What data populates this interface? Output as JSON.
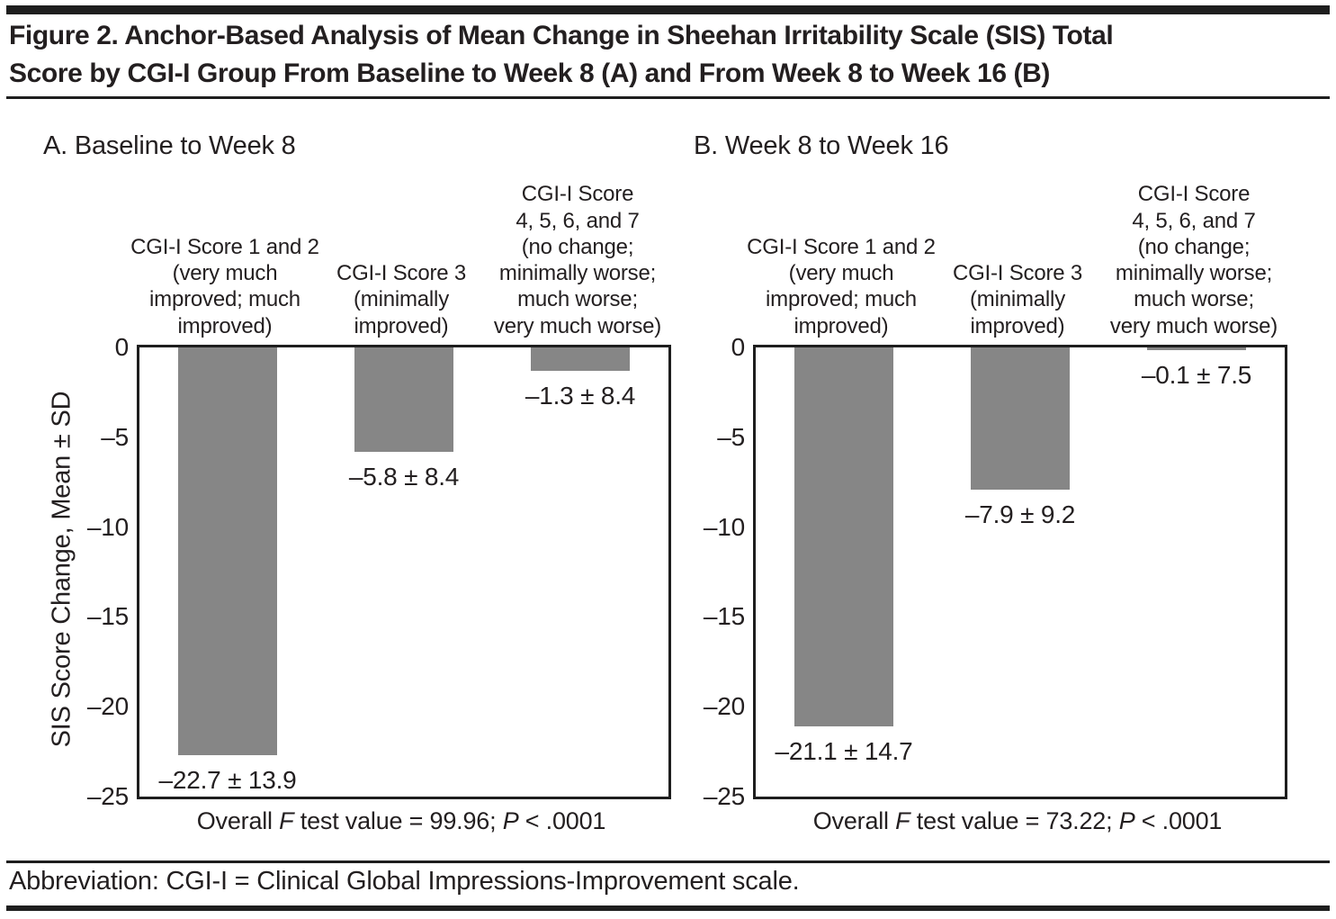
{
  "page": {
    "title": "Figure 2. Anchor-Based Analysis of Mean Change in Sheehan Irritability Scale (SIS) Total\nScore by CGI-I Group From Baseline to Week 8 (A) and From Week 8 to Week 16 (B)",
    "abbreviation": "Abbreviation: CGI-I = Clinical Global Impressions-Improvement scale."
  },
  "colors": {
    "bar": "#868686",
    "text": "#231f20",
    "rule": "#1e1e1e"
  },
  "chart_data": [
    {
      "type": "bar",
      "panel": "A",
      "title": "A. Baseline to Week 8",
      "ylabel": "SIS Score Change, Mean ± SD",
      "xlabel": "",
      "ylim": [
        -25,
        0
      ],
      "grid": false,
      "legend": "none",
      "categories": [
        "CGI-I Score 1 and 2\n(very much\nimproved; much\nimproved)",
        "CGI-I Score 3\n(minimally\nimproved)",
        "CGI-I Score\n4, 5, 6, and 7\n(no change;\nminimally worse;\nmuch worse;\nvery much worse)"
      ],
      "values": [
        -22.7,
        -5.8,
        -1.3
      ],
      "sd": [
        13.9,
        8.4,
        8.4
      ],
      "bar_labels": [
        "–22.7 ± 13.9",
        "–5.8 ± 8.4",
        "–1.3 ± 8.4"
      ],
      "yticks": [
        {
          "value": 0,
          "label": "0"
        },
        {
          "value": -5,
          "label": "–5"
        },
        {
          "value": -10,
          "label": "–10"
        },
        {
          "value": -15,
          "label": "–15"
        },
        {
          "value": -20,
          "label": "–20"
        },
        {
          "value": -25,
          "label": "–25"
        }
      ],
      "footnote": {
        "t1": "Overall ",
        "f": "F",
        "t2": " test value = 99.96; ",
        "p": "P",
        "t3": " < .0001"
      }
    },
    {
      "type": "bar",
      "panel": "B",
      "title": "B. Week 8 to Week 16",
      "ylabel": "",
      "xlabel": "",
      "ylim": [
        -25,
        0
      ],
      "grid": false,
      "legend": "none",
      "categories": [
        "CGI-I Score 1 and 2\n(very much\nimproved; much\nimproved)",
        "CGI-I Score 3\n(minimally\nimproved)",
        "CGI-I Score\n4, 5, 6, and 7\n(no change;\nminimally worse;\nmuch worse;\nvery much worse)"
      ],
      "values": [
        -21.1,
        -7.9,
        -0.1
      ],
      "sd": [
        14.7,
        9.2,
        7.5
      ],
      "bar_labels": [
        "–21.1 ± 14.7",
        "–7.9 ± 9.2",
        "–0.1 ± 7.5"
      ],
      "yticks": [
        {
          "value": 0,
          "label": "0"
        },
        {
          "value": -5,
          "label": "–5"
        },
        {
          "value": -10,
          "label": "–10"
        },
        {
          "value": -15,
          "label": "–15"
        },
        {
          "value": -20,
          "label": "–20"
        },
        {
          "value": -25,
          "label": "–25"
        }
      ],
      "footnote": {
        "t1": "Overall ",
        "f": "F",
        "t2": " test value = 73.22; ",
        "p": "P",
        "t3": " < .0001"
      }
    }
  ]
}
